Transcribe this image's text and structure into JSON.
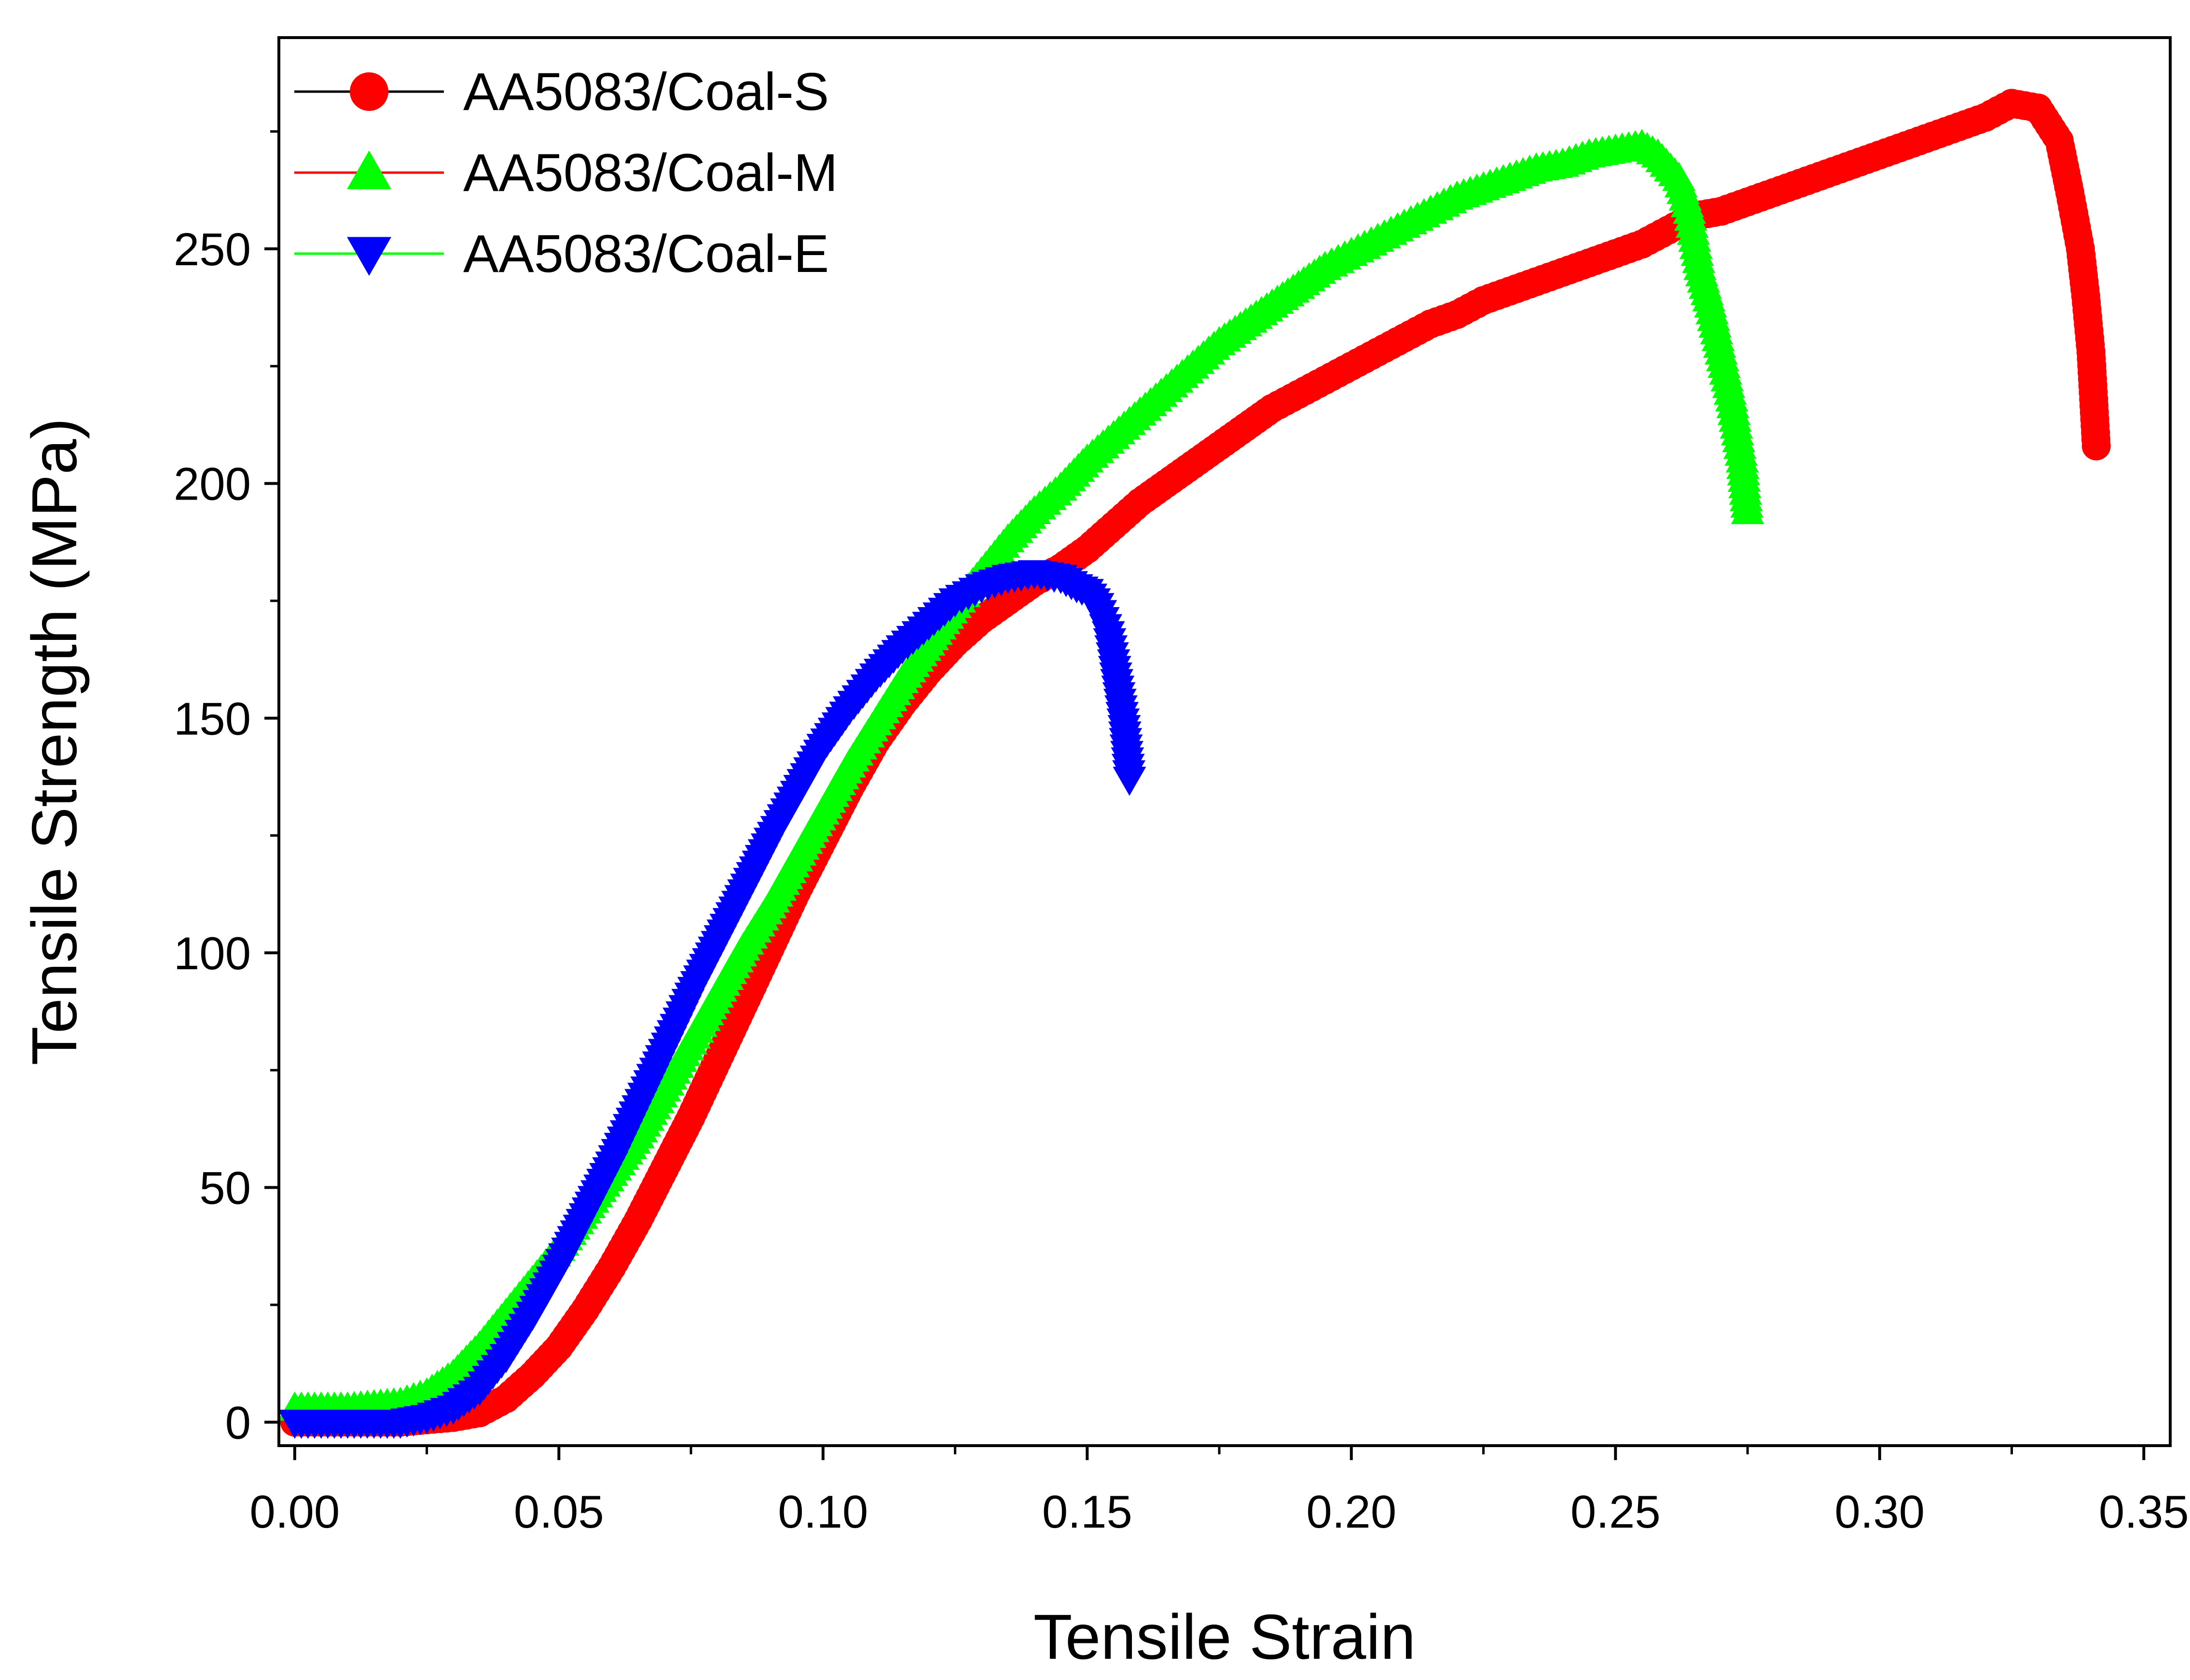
{
  "chart_data": {
    "type": "scatter",
    "title": "",
    "xlabel": "Tensile Strain",
    "ylabel": "Tensile Strength (MPa)",
    "xlim": [
      -0.003,
      0.355
    ],
    "ylim": [
      -5,
      295
    ],
    "xticks": [
      "0.00",
      "0.05",
      "0.10",
      "0.15",
      "0.20",
      "0.25",
      "0.30",
      "0.35"
    ],
    "xtick_values": [
      0.0,
      0.05,
      0.1,
      0.15,
      0.2,
      0.25,
      0.3,
      0.35
    ],
    "yticks": [
      "0",
      "50",
      "100",
      "150",
      "200",
      "250"
    ],
    "ytick_values": [
      0,
      50,
      100,
      150,
      200,
      250
    ],
    "legend_position": "top-left",
    "series": [
      {
        "name": "AA5083/Coal-S",
        "marker": "circle",
        "color": "#ff0000",
        "line_color": "#000000",
        "x": [
          0.0,
          0.01,
          0.02,
          0.03,
          0.035,
          0.04,
          0.045,
          0.05,
          0.055,
          0.06,
          0.065,
          0.07,
          0.075,
          0.08,
          0.085,
          0.09,
          0.095,
          0.1,
          0.105,
          0.11,
          0.115,
          0.12,
          0.125,
          0.13,
          0.135,
          0.14,
          0.145,
          0.15,
          0.155,
          0.16,
          0.165,
          0.17,
          0.175,
          0.18,
          0.185,
          0.19,
          0.195,
          0.2,
          0.205,
          0.21,
          0.215,
          0.22,
          0.225,
          0.23,
          0.235,
          0.24,
          0.245,
          0.25,
          0.255,
          0.26,
          0.265,
          0.27,
          0.275,
          0.28,
          0.285,
          0.29,
          0.295,
          0.3,
          0.305,
          0.31,
          0.315,
          0.32,
          0.325,
          0.33,
          0.334,
          0.336,
          0.338,
          0.339,
          0.34,
          0.341
        ],
        "y": [
          0,
          0,
          0,
          1,
          2,
          5,
          10,
          16,
          24,
          33,
          43,
          54,
          65,
          77,
          89,
          101,
          113,
          124,
          135,
          145,
          153,
          160,
          166,
          171,
          175,
          179,
          182,
          186,
          191,
          196,
          200,
          204,
          208,
          212,
          216,
          219,
          222,
          225,
          228,
          231,
          234,
          236,
          239,
          241,
          243,
          245,
          247,
          249,
          251,
          254,
          257,
          258,
          260,
          262,
          264,
          266,
          268,
          270,
          272,
          274,
          276,
          278,
          281,
          280,
          273,
          262,
          250,
          240,
          228,
          208
        ]
      },
      {
        "name": "AA5083/Coal-M",
        "marker": "triangle-up",
        "color": "#00ff00",
        "line_color": "#ff0000",
        "x": [
          0.0,
          0.01,
          0.02,
          0.025,
          0.03,
          0.035,
          0.04,
          0.045,
          0.05,
          0.055,
          0.06,
          0.065,
          0.07,
          0.075,
          0.08,
          0.085,
          0.09,
          0.095,
          0.1,
          0.105,
          0.11,
          0.115,
          0.12,
          0.125,
          0.13,
          0.135,
          0.14,
          0.145,
          0.15,
          0.155,
          0.16,
          0.165,
          0.17,
          0.175,
          0.18,
          0.185,
          0.19,
          0.195,
          0.2,
          0.205,
          0.21,
          0.215,
          0.22,
          0.225,
          0.23,
          0.235,
          0.24,
          0.245,
          0.25,
          0.255,
          0.258,
          0.262,
          0.264,
          0.266,
          0.268,
          0.27,
          0.272,
          0.274,
          0.275
        ],
        "y": [
          3,
          3,
          4,
          6,
          10,
          16,
          23,
          30,
          37,
          45,
          53,
          61,
          71,
          81,
          91,
          101,
          110,
          120,
          130,
          140,
          149,
          158,
          166,
          174,
          181,
          188,
          194,
          199,
          205,
          210,
          215,
          220,
          225,
          230,
          234,
          238,
          242,
          246,
          249,
          252,
          255,
          258,
          261,
          263,
          265,
          267,
          268,
          270,
          271,
          272,
          270,
          265,
          258,
          246,
          238,
          228,
          218,
          205,
          194
        ]
      },
      {
        "name": "AA5083/Coal-E",
        "marker": "triangle-down",
        "color": "#0000ff",
        "line_color": "#00ff00",
        "x": [
          0.0,
          0.01,
          0.02,
          0.025,
          0.03,
          0.035,
          0.04,
          0.045,
          0.05,
          0.055,
          0.06,
          0.065,
          0.07,
          0.075,
          0.08,
          0.085,
          0.09,
          0.095,
          0.1,
          0.105,
          0.11,
          0.115,
          0.12,
          0.125,
          0.13,
          0.135,
          0.14,
          0.145,
          0.148,
          0.15,
          0.152,
          0.154,
          0.155,
          0.156,
          0.157,
          0.158
        ],
        "y": [
          0,
          0,
          0,
          1,
          3,
          7,
          14,
          23,
          33,
          44,
          55,
          67,
          79,
          91,
          102,
          113,
          124,
          134,
          144,
          152,
          159,
          165,
          170,
          175,
          178,
          180,
          181,
          180,
          178,
          177,
          174,
          168,
          162,
          155,
          148,
          137
        ]
      }
    ]
  }
}
